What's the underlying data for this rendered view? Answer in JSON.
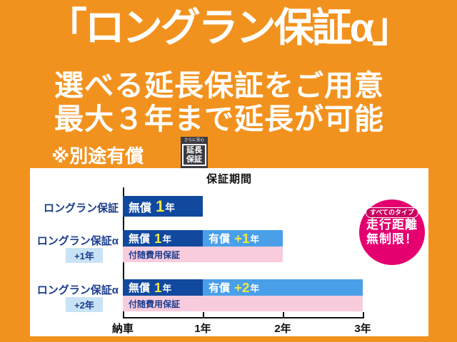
{
  "page": {
    "background_color": "#F2921E"
  },
  "header": {
    "title": "「ロングラン保証α」",
    "subtitle_line1": "選べる延長保証をご用意",
    "subtitle_line2": "最大３年まで延長が可能",
    "note": "※別途有償",
    "stamp": {
      "top": "さらに安心",
      "line1": "延長",
      "line2": "保証"
    }
  },
  "chart_data": {
    "type": "bar",
    "title": "保証期間",
    "orientation": "horizontal-gantt",
    "x_ticks": [
      "納車",
      "1年",
      "2年",
      "3年"
    ],
    "x_range_years": [
      0,
      3
    ],
    "rows": [
      {
        "label": "ロングラン保証",
        "sublabel": null,
        "segments": [
          {
            "kind": "無償",
            "num": "1",
            "unit": "年",
            "start": 0,
            "end": 1,
            "color": "#10499e"
          }
        ],
        "accessory_bar": null
      },
      {
        "label": "ロングラン保証α",
        "sublabel": "+1年",
        "segments": [
          {
            "kind": "無償",
            "num": "1",
            "unit": "年",
            "start": 0,
            "end": 1,
            "color": "#10499e"
          },
          {
            "kind": "有償",
            "num": "+1",
            "unit": "年",
            "start": 1,
            "end": 2,
            "color": "#4a9fe9"
          }
        ],
        "accessory_bar": {
          "label": "付随費用保証",
          "start": 0,
          "end": 2,
          "color": "#f9ccdd"
        }
      },
      {
        "label": "ロングラン保証α",
        "sublabel": "+2年",
        "segments": [
          {
            "kind": "無償",
            "num": "1",
            "unit": "年",
            "start": 0,
            "end": 1,
            "color": "#10499e"
          },
          {
            "kind": "有償",
            "num": "+2",
            "unit": "年",
            "start": 1,
            "end": 3,
            "color": "#4a9fe9"
          }
        ],
        "accessory_bar": {
          "label": "付随費用保証",
          "start": 0,
          "end": 3,
          "color": "#f9ccdd"
        }
      }
    ],
    "legend_badge": {
      "pill": "すべてのタイプ",
      "line1": "走行距離",
      "line2": "無制限！",
      "color": "#e4006f"
    }
  },
  "colors": {
    "background_orange": "#F2921E",
    "bar_dark_blue": "#10499e",
    "bar_light_blue": "#4a9fe9",
    "bar_pink": "#f9ccdd",
    "label_navy": "#1b3d8f",
    "accent_yellow": "#f2e93e",
    "badge_magenta": "#e4006f",
    "stamp_dark": "#3a3a40"
  }
}
